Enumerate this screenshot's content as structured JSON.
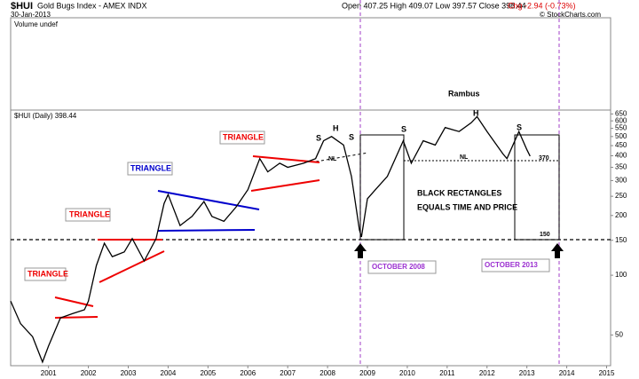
{
  "header": {
    "symbol": "$HUI",
    "title": "Gold Bugs Index - AMEX INDX",
    "date": "30-Jan-2013",
    "stats": "Open 407.25 High 409.07 Low 397.57 Close 398.44",
    "change": "Chg -2.94 (-0.73%)",
    "source": "© StockCharts.com",
    "volume": "Volume undef"
  },
  "chart_data": {
    "type": "line",
    "legend": "$HUI (Daily) 398.44",
    "log_scale": true,
    "grid": false,
    "x": [
      2000.05,
      2000.3,
      2000.6,
      2000.85,
      2001.0,
      2001.3,
      2001.6,
      2001.9,
      2002.0,
      2002.2,
      2002.4,
      2002.6,
      2002.9,
      2003.1,
      2003.4,
      2003.7,
      2003.9,
      2004.0,
      2004.3,
      2004.6,
      2004.9,
      2005.1,
      2005.4,
      2005.7,
      2006.0,
      2006.3,
      2006.5,
      2006.8,
      2007.0,
      2007.4,
      2007.7,
      2007.9,
      2008.1,
      2008.4,
      2008.6,
      2008.8,
      2008.85,
      2009.0,
      2009.2,
      2009.5,
      2009.9,
      2010.1,
      2010.4,
      2010.7,
      2010.95,
      2011.3,
      2011.6,
      2011.75,
      2012.0,
      2012.4,
      2012.5,
      2012.8,
      2013.0,
      2013.08
    ],
    "series": [
      {
        "name": "$HUI",
        "color": "#000000",
        "values": [
          74,
          57,
          49,
          36.5,
          44,
          61,
          64,
          67,
          74,
          112,
          145,
          124,
          131,
          153,
          118,
          153,
          230,
          255,
          178,
          198,
          235,
          198,
          187,
          220,
          270,
          387,
          332,
          367,
          350,
          367,
          387,
          476,
          500,
          453,
          315,
          169,
          156,
          243,
          270,
          315,
          476,
          367,
          476,
          453,
          555,
          530,
          586,
          630,
          530,
          409,
          387,
          530,
          429,
          398.44
        ]
      }
    ],
    "xlim": [
      2000.05,
      2015.1
    ],
    "xticks": [
      2001,
      2002,
      2003,
      2004,
      2005,
      2006,
      2007,
      2008,
      2009,
      2010,
      2011,
      2012,
      2013,
      2014,
      2015
    ],
    "ylim": [
      35,
      680
    ],
    "yticks": [
      50,
      100,
      150,
      200,
      250,
      300,
      350,
      400,
      450,
      500,
      550,
      600,
      650
    ],
    "annotations": {
      "triangle1": "TRIANGLE",
      "triangle2": "TRIANGLE",
      "triangle3": "TRIANGLE",
      "triangle4": "TRIANGLE",
      "s1": "S",
      "h1": "H",
      "s2": "S",
      "nl1": "NL",
      "s3": "S",
      "h2": "H",
      "s4": "S",
      "nl2": "NL",
      "level370": "370",
      "level150": "150",
      "author": "Rambus",
      "note1": "BLACK RECTANGLES",
      "note2": "EQUALS TIME AND PRICE",
      "oct2008": "OCTOBER 2008",
      "oct2013": "OCTOBER 2013"
    }
  }
}
